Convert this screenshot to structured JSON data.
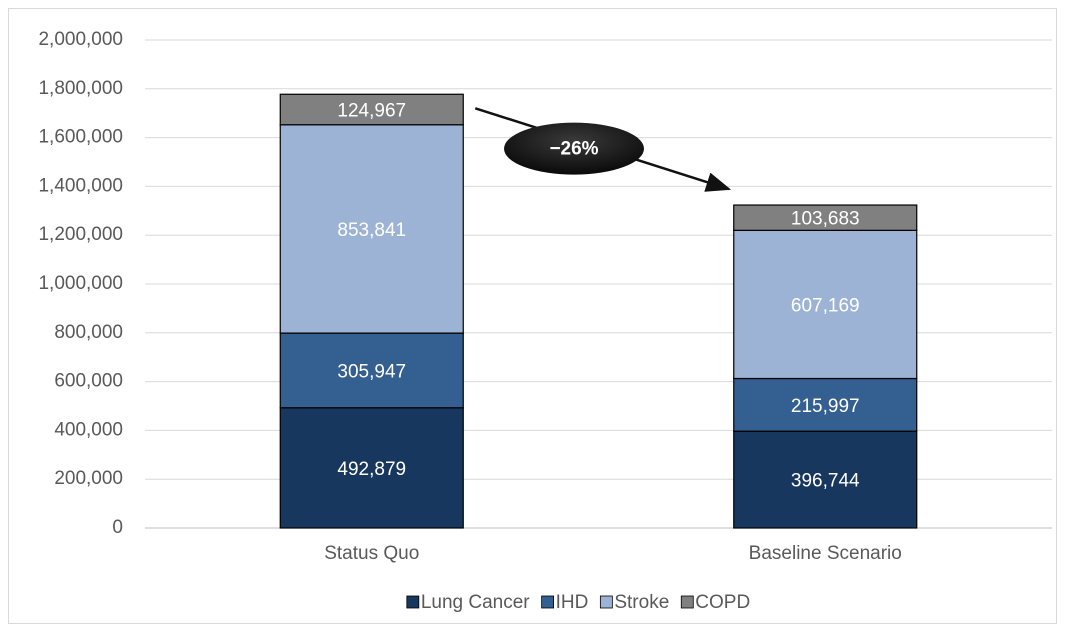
{
  "chart_data": {
    "type": "stacked_bar",
    "categories": [
      "Status Quo",
      "Baseline Scenario"
    ],
    "series": [
      {
        "name": "Lung Cancer",
        "color": "#17375e",
        "values": [
          492879,
          396744
        ],
        "value_labels": [
          "492,879",
          "396,744"
        ]
      },
      {
        "name": "IHD",
        "color": "#335f91",
        "values": [
          305947,
          215997
        ],
        "value_labels": [
          "305,947",
          "215,997"
        ]
      },
      {
        "name": "Stroke",
        "color": "#9db3d5",
        "values": [
          853841,
          607169
        ],
        "value_labels": [
          "853,841",
          "607,169"
        ]
      },
      {
        "name": "COPD",
        "color": "#808080",
        "values": [
          124967,
          103683
        ],
        "value_labels": [
          "124,967",
          "103,683"
        ]
      }
    ],
    "ylim": [
      0,
      2000000
    ],
    "yticks": [
      0,
      {
        "value": 200000,
        "label": "200,000"
      },
      {
        "value": 400000,
        "label": "400,000"
      },
      {
        "value": 600000,
        "label": "600,000"
      },
      {
        "value": 800000,
        "label": "800,000"
      },
      {
        "value": 1000000,
        "label": "1,000,000"
      },
      {
        "value": 1200000,
        "label": "1,200,000"
      },
      {
        "value": 1400000,
        "label": "1,400,000"
      },
      {
        "value": 1600000,
        "label": "1,600,000"
      },
      {
        "value": 1800000,
        "label": "1,800,000"
      },
      {
        "value": 2000000,
        "label": "2,000,000"
      }
    ],
    "grid": true,
    "legend": "bottom",
    "annotation": "−26%"
  }
}
